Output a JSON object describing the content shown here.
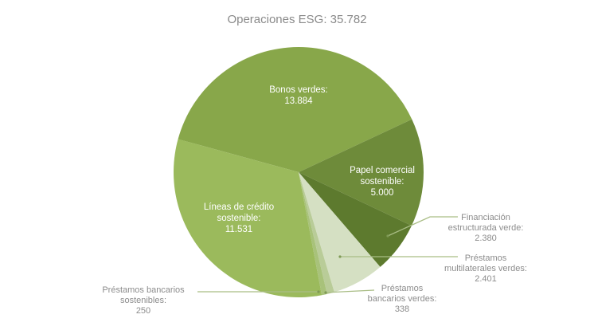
{
  "chart_data": {
    "type": "pie",
    "title": "Operaciones ESG: 35.782",
    "total": 35782,
    "start_angle_deg": 195.3,
    "center": [
      375,
      216
    ],
    "radius": 157,
    "slices": [
      {
        "name": "Bonos verdes",
        "value": 13884,
        "value_label": "13.884",
        "color": "#88a74a",
        "label_inside": true
      },
      {
        "name": "Papel comercial sostenible",
        "value": 5000,
        "value_label": "5.000",
        "color": "#6e8b3a",
        "label_inside": true
      },
      {
        "name": "Financiación estructurada verde",
        "value": 2380,
        "value_label": "2.380",
        "color": "#5d7a2e",
        "label_inside": false
      },
      {
        "name": "Préstamos multilaterales verdes",
        "value": 2401,
        "value_label": "2.401",
        "color": "#d5e0c3",
        "label_inside": false
      },
      {
        "name": "Préstamos bancarios verdes",
        "value": 338,
        "value_label": "338",
        "color": "#b9cc98",
        "label_inside": false
      },
      {
        "name": "Préstamos bancarios sostenibles",
        "value": 250,
        "value_label": "250",
        "color": "#a8c27a",
        "label_inside": false
      },
      {
        "name": "Líneas de crédito sostenible",
        "value": 11531,
        "value_label": "11.531",
        "color": "#9bba5c",
        "label_inside": true
      }
    ]
  },
  "labels": {
    "title": "Operaciones ESG: 35.782",
    "bonos": [
      "Bonos verdes:",
      "13.884"
    ],
    "papel": [
      "Papel comercial",
      "sostenible:",
      "5.000"
    ],
    "lineas": [
      "Líneas de crédito",
      "sostenible:",
      "11.531"
    ],
    "financiacion": [
      "Financiación",
      "estructurada verde:",
      "2.380"
    ],
    "multilaterales": [
      "Préstamos",
      "multilaterales verdes:",
      "2.401"
    ],
    "bancarios_verdes": [
      "Préstamos",
      "bancarios verdes:",
      "338"
    ],
    "bancarios_sostenibles": [
      "Préstamos bancarios",
      "sostenibles:",
      "250"
    ]
  }
}
